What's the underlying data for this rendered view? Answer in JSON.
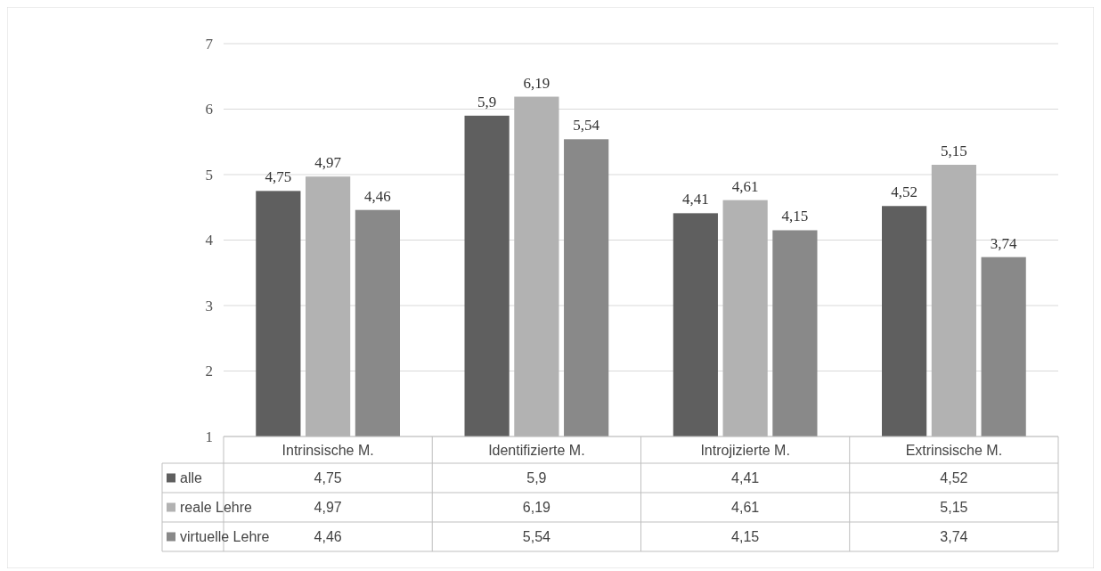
{
  "chart_data": {
    "type": "bar",
    "categories": [
      "Intrinsische M.",
      "Identifizierte M.",
      "Introjizierte M.",
      "Extrinsische M."
    ],
    "series": [
      {
        "name": "alle",
        "color": "#5f5f5f",
        "values": [
          4.75,
          5.9,
          4.41,
          4.52
        ],
        "value_labels": [
          "4,75",
          "5,9",
          "4,41",
          "4,52"
        ]
      },
      {
        "name": "reale Lehre",
        "color": "#b2b2b2",
        "values": [
          4.97,
          6.19,
          4.61,
          5.15
        ],
        "value_labels": [
          "4,97",
          "6,19",
          "4,61",
          "5,15"
        ]
      },
      {
        "name": "virtuelle Lehre",
        "color": "#898989",
        "values": [
          4.46,
          5.54,
          4.15,
          3.74
        ],
        "value_labels": [
          "4,46",
          "5,54",
          "4,15",
          "3,74"
        ]
      }
    ],
    "ylim": [
      1,
      7
    ],
    "yticks": [
      1,
      2,
      3,
      4,
      5,
      6,
      7
    ],
    "grid": "y",
    "legend": "bottom"
  }
}
